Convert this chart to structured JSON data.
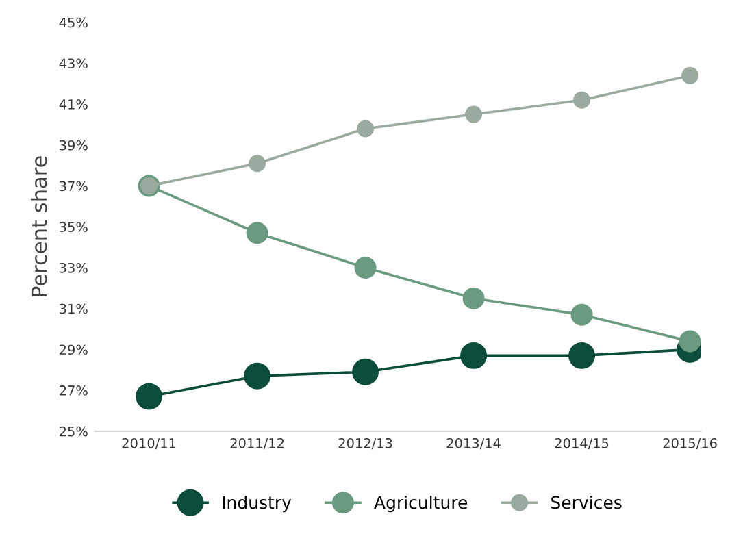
{
  "chart_data": {
    "type": "line",
    "ylabel": "Percent share",
    "categories": [
      "2010/11",
      "2011/12",
      "2012/13",
      "2013/14",
      "2014/15",
      "2015/16"
    ],
    "series": [
      {
        "name": "Industry",
        "color": "#0b4d3a",
        "values": [
          26.7,
          27.7,
          27.9,
          28.7,
          28.7,
          29.0
        ]
      },
      {
        "name": "Agriculture",
        "color": "#6a9a80",
        "values": [
          37.0,
          34.7,
          33.0,
          31.5,
          30.7,
          29.4
        ]
      },
      {
        "name": "Services",
        "color": "#9aaa9e",
        "values": [
          37.0,
          38.1,
          39.8,
          40.5,
          41.2,
          42.4
        ]
      }
    ],
    "ylim": [
      25,
      45
    ],
    "yticks": [
      {
        "value": 25,
        "label": "25%"
      },
      {
        "value": 27,
        "label": "27%"
      },
      {
        "value": 29,
        "label": "29%"
      },
      {
        "value": 31,
        "label": "31%"
      },
      {
        "value": 33,
        "label": "33%"
      },
      {
        "value": 35,
        "label": "35%"
      },
      {
        "value": 37,
        "label": "37%"
      },
      {
        "value": 39,
        "label": "39%"
      },
      {
        "value": 41,
        "label": "41%"
      },
      {
        "value": 43,
        "label": "43%"
      },
      {
        "value": 45,
        "label": "45%"
      }
    ],
    "grid": false,
    "legend": "bottom",
    "marker": "circle",
    "line_style": "solid"
  }
}
